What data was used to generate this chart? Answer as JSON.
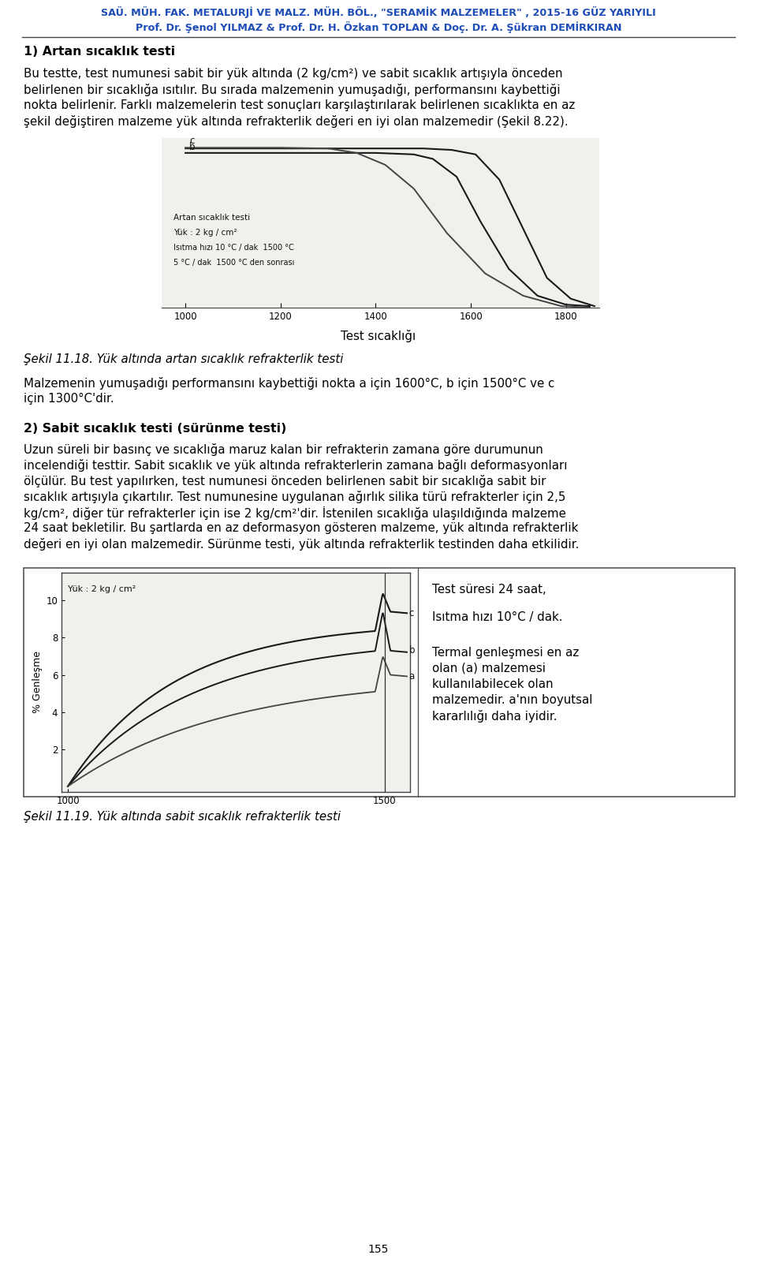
{
  "page_title_line1": "SAÜ. MÜH. FAK. METALURJİ VE MALZ. MÜH. BÖL., \"SERAMİK MALZEMELER\" , 2015-16 GÜZ YARIYILI",
  "page_title_line2": "Prof. Dr. Şenol YILMAZ & Prof. Dr. H. Özkan TOPLAN & Doç. Dr. A. Şükran DEMİRKIRAN",
  "title_color": "#1e4db7",
  "section1_heading": "1) Artan sıcaklık testi",
  "fig1_xlabel": "Test sıcaklığı",
  "fig1_legend_line1": "Artan sıcaklık testi",
  "fig1_legend_line2": "Yük : 2 kg / cm²",
  "fig1_legend_line3": "Isıtma hızı 10 °C / dak  1500 °C",
  "fig1_legend_line4": "5 °C / dak  1500 °C den sonrası",
  "fig1_xticks": [
    1000,
    1200,
    1400,
    1600,
    1800
  ],
  "fig1_caption": "Şekil 11.18. Yük altında artan sıcaklık refrakterlik testi",
  "section2_heading": "2) Sabit sıcaklık testi (sürünme testi)",
  "fig2_ylabel": "% Genleşme",
  "fig2_legend": "Yük : 2 kg / cm²",
  "fig2_xticks": [
    1000,
    1500
  ],
  "fig2_yticks": [
    2,
    4,
    6,
    8,
    10
  ],
  "fig2_caption": "Şekil 11.19. Yük altında sabit sıcaklık refrakterlik testi",
  "side_text_line1": "Test süresi 24 saat,",
  "side_text_line2": "Isıtma hızı 10°C / dak.",
  "side_text_line3a": "Termal genleşmesi en az",
  "side_text_line3b": "olan (a) malzemesi",
  "side_text_line3c": "kullanılabilecek olan",
  "side_text_line3d": "malzemedir. a'nın boyutsal",
  "side_text_line3e": "kararlılığı daha iyidir.",
  "page_number": "155",
  "bg_color": "#ffffff",
  "text_color": "#000000"
}
